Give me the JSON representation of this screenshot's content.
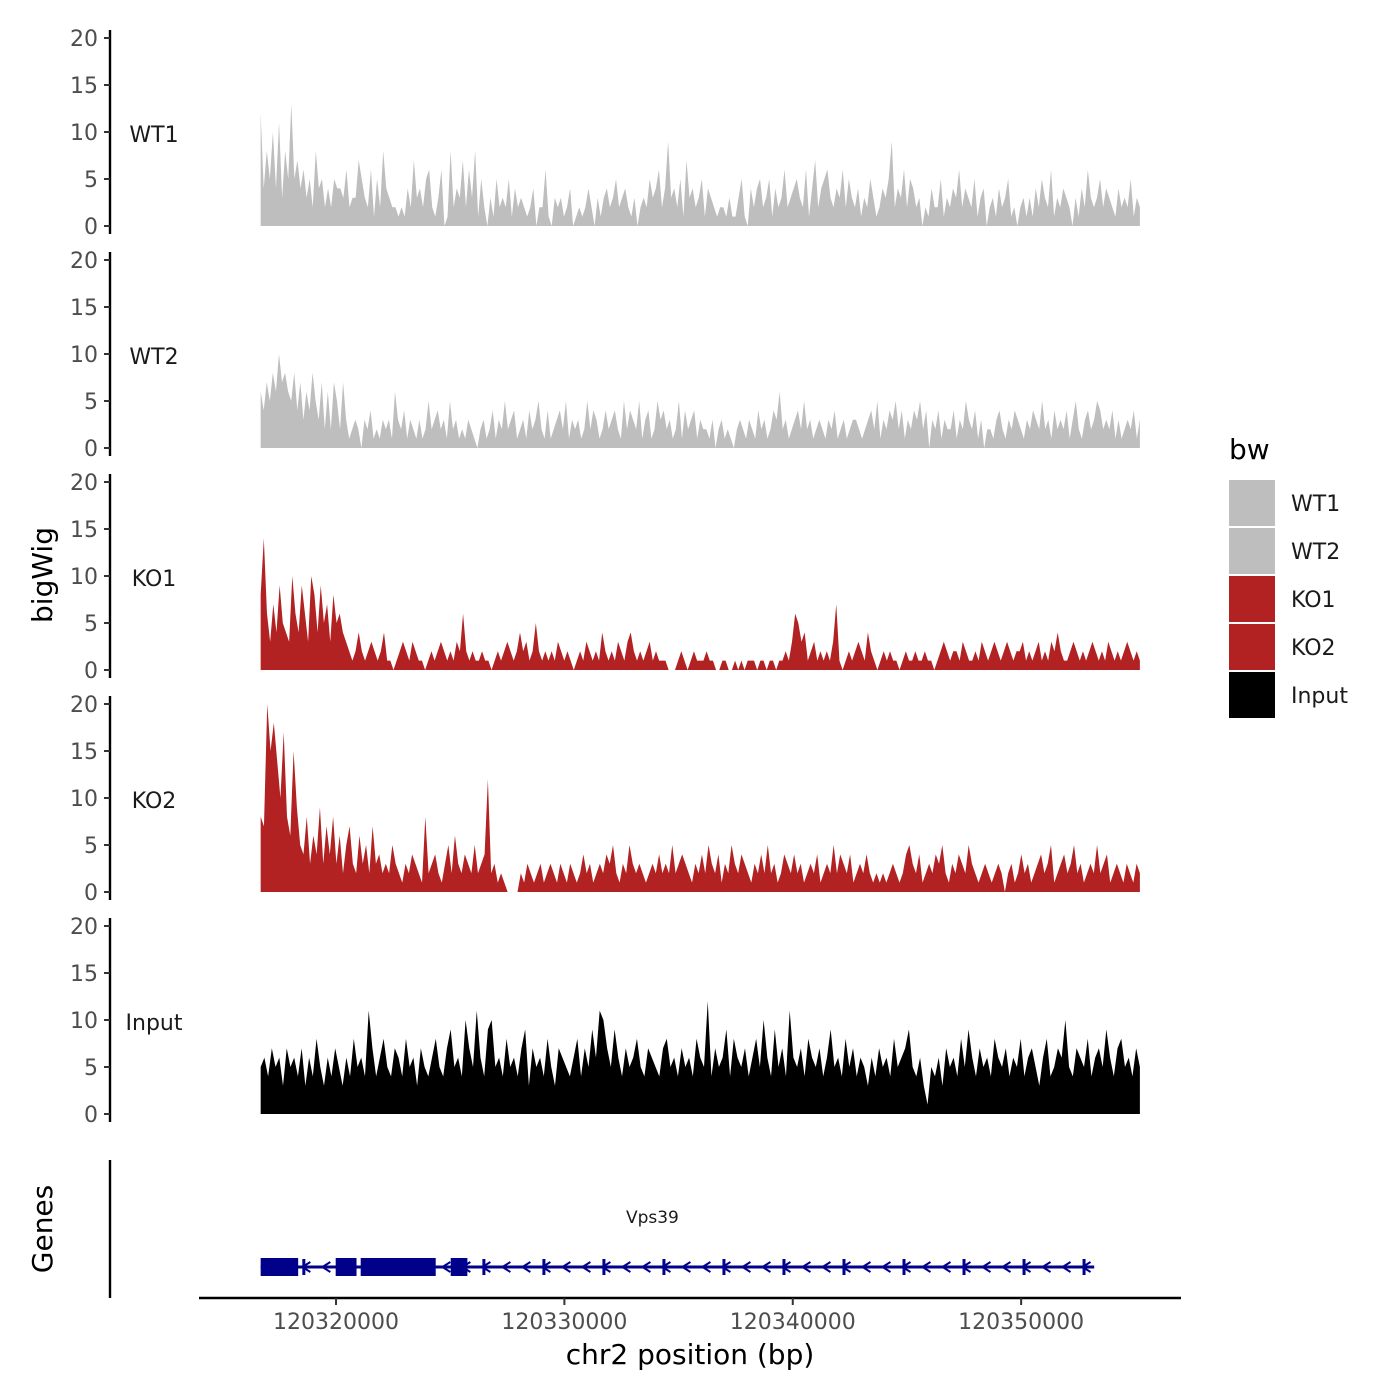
{
  "chart_data": {
    "type": "area",
    "y_axis_title": "bigWig",
    "x_axis_title": "chr2 position (bp)",
    "genes_axis_title": "Genes",
    "xlim": [
      120314000,
      120357000
    ],
    "ylim": [
      0,
      20
    ],
    "y_ticks": [
      0,
      5,
      10,
      15,
      20
    ],
    "x_ticks": [
      120320000,
      120330000,
      120340000,
      120350000
    ],
    "x_tick_labels": [
      "120320000",
      "120330000",
      "120340000",
      "120350000"
    ],
    "data_start": 120316700,
    "data_end": 120355200,
    "legend": {
      "title": "bw",
      "entries": [
        {
          "name": "WT1",
          "color": "#bebebe"
        },
        {
          "name": "WT2",
          "color": "#bebebe"
        },
        {
          "name": "KO1",
          "color": "#b22222"
        },
        {
          "name": "KO2",
          "color": "#b22222"
        },
        {
          "name": "Input",
          "color": "#000000"
        }
      ]
    },
    "series": [
      {
        "name": "WT1",
        "color": "#bebebe",
        "values": [
          12,
          4,
          8,
          5,
          10,
          4,
          11,
          3,
          8,
          5,
          13,
          5,
          7,
          4,
          6,
          3,
          5,
          2,
          8,
          4,
          5,
          2,
          4,
          2,
          5,
          4,
          4,
          3,
          6,
          2,
          3,
          3,
          7,
          5,
          3,
          2,
          6,
          1,
          5,
          2,
          8,
          4,
          3,
          2,
          2,
          1,
          2,
          1,
          4,
          2,
          7,
          3,
          4,
          2,
          5,
          6,
          2,
          1,
          3,
          6,
          0,
          1,
          8,
          2,
          4,
          3,
          7,
          2,
          6,
          3,
          8,
          1,
          5,
          2,
          0,
          3,
          1,
          5,
          2,
          3,
          2,
          5,
          1,
          4,
          2,
          3,
          2,
          1,
          2,
          4,
          0,
          2,
          2,
          6,
          1,
          0,
          3,
          2,
          3,
          1,
          2,
          4,
          0,
          1,
          2,
          1,
          2,
          4,
          2,
          0,
          3,
          1,
          3,
          4,
          2,
          3,
          5,
          2,
          3,
          4,
          2,
          1,
          3,
          0,
          2,
          3,
          2,
          5,
          3,
          4,
          6,
          2,
          4,
          9,
          3,
          4,
          2,
          5,
          1,
          7,
          3,
          4,
          2,
          3,
          5,
          1,
          4,
          3,
          2,
          1,
          2,
          2,
          1,
          3,
          1,
          1,
          3,
          5,
          1,
          0,
          4,
          2,
          4,
          5,
          2,
          3,
          5,
          1,
          4,
          2,
          3,
          6,
          2,
          3,
          4,
          5,
          3,
          2,
          6,
          1,
          4,
          7,
          2,
          4,
          5,
          6,
          3,
          2,
          4,
          3,
          6,
          2,
          5,
          3,
          2,
          4,
          1,
          3,
          2,
          5,
          3,
          1,
          2,
          4,
          3,
          5,
          9,
          2,
          4,
          3,
          6,
          2,
          5,
          4,
          2,
          3,
          0,
          2,
          1,
          4,
          2,
          2,
          5,
          1,
          3,
          2,
          4,
          3,
          6,
          2,
          4,
          3,
          2,
          5,
          1,
          3,
          4,
          0,
          2,
          3,
          1,
          4,
          2,
          3,
          5,
          1,
          2,
          0,
          2,
          3,
          1,
          3,
          1,
          4,
          2,
          5,
          3,
          2,
          6,
          1,
          3,
          2,
          4,
          3,
          2,
          0,
          3,
          1,
          4,
          2,
          6,
          3,
          2,
          3,
          5,
          2,
          4,
          3,
          2,
          1,
          4,
          2,
          3,
          2,
          5,
          1,
          3,
          2
        ]
      },
      {
        "name": "WT2",
        "color": "#bebebe",
        "values": [
          6,
          4,
          7,
          5,
          8,
          6,
          10,
          7,
          8,
          6,
          5,
          8,
          4,
          7,
          3,
          6,
          4,
          8,
          5,
          3,
          7,
          2,
          6,
          2,
          7,
          5,
          2,
          7,
          3,
          1,
          2,
          3,
          2,
          0,
          3,
          2,
          4,
          1,
          2,
          1,
          3,
          2,
          3,
          1,
          6,
          3,
          2,
          4,
          1,
          3,
          2,
          1,
          3,
          1,
          2,
          5,
          2,
          3,
          4,
          2,
          3,
          1,
          5,
          2,
          3,
          1,
          2,
          1,
          3,
          2,
          1,
          0,
          2,
          3,
          1,
          2,
          4,
          1,
          3,
          2,
          5,
          2,
          3,
          4,
          1,
          2,
          3,
          1,
          4,
          2,
          3,
          5,
          2,
          1,
          4,
          1,
          2,
          3,
          4,
          2,
          5,
          1,
          3,
          2,
          3,
          1,
          2,
          5,
          2,
          4,
          3,
          1,
          2,
          4,
          2,
          3,
          4,
          2,
          1,
          5,
          2,
          4,
          3,
          2,
          5,
          1,
          3,
          4,
          1,
          2,
          5,
          3,
          4,
          2,
          3,
          1,
          2,
          5,
          1,
          4,
          2,
          3,
          4,
          1,
          3,
          2,
          2,
          1,
          3,
          0,
          2,
          3,
          1,
          2,
          1,
          0,
          2,
          3,
          2,
          1,
          3,
          2,
          1,
          4,
          2,
          3,
          1,
          2,
          4,
          3,
          6,
          2,
          3,
          1,
          2,
          3,
          4,
          2,
          5,
          2,
          3,
          1,
          2,
          3,
          2,
          1,
          3,
          2,
          4,
          1,
          2,
          3,
          1,
          2,
          3,
          3,
          2,
          1,
          2,
          3,
          4,
          2,
          5,
          1,
          3,
          2,
          4,
          3,
          5,
          2,
          4,
          1,
          3,
          2,
          4,
          3,
          5,
          2,
          4,
          0,
          3,
          2,
          4,
          1,
          3,
          2,
          2,
          4,
          1,
          3,
          2,
          5,
          3,
          2,
          4,
          1,
          3,
          0,
          2,
          2,
          1,
          3,
          4,
          2,
          1,
          3,
          2,
          4,
          3,
          2,
          1,
          3,
          2,
          4,
          3,
          2,
          5,
          2,
          3,
          1,
          4,
          2,
          3,
          2,
          4,
          1,
          3,
          5,
          2,
          1,
          3,
          4,
          2,
          3,
          5,
          4,
          2,
          3,
          2,
          4,
          1,
          3,
          1,
          2,
          3,
          2,
          4,
          1,
          3
        ]
      },
      {
        "name": "KO1",
        "color": "#b22222",
        "values": [
          8,
          14,
          6,
          3,
          7,
          4,
          9,
          5,
          4,
          3,
          10,
          6,
          4,
          9,
          6,
          3,
          10,
          8,
          4,
          9,
          5,
          7,
          3,
          8,
          5,
          6,
          4,
          3,
          2,
          1,
          2,
          4,
          2,
          1,
          2,
          3,
          2,
          1,
          2,
          4,
          1,
          1,
          0,
          1,
          2,
          3,
          2,
          1,
          3,
          2,
          1,
          1,
          0,
          1,
          2,
          1,
          2,
          3,
          2,
          1,
          2,
          1,
          3,
          2,
          6,
          2,
          1,
          2,
          1,
          1,
          2,
          1,
          1,
          0,
          1,
          2,
          1,
          2,
          3,
          2,
          1,
          2,
          4,
          2,
          3,
          1,
          2,
          5,
          2,
          1,
          2,
          1,
          2,
          1,
          3,
          2,
          1,
          2,
          1,
          0,
          1,
          2,
          1,
          3,
          2,
          1,
          2,
          1,
          4,
          2,
          1,
          2,
          1,
          3,
          2,
          1,
          3,
          4,
          2,
          1,
          2,
          1,
          2,
          3,
          1,
          2,
          1,
          1,
          1,
          0,
          0,
          0,
          1,
          2,
          1,
          0,
          1,
          2,
          1,
          1,
          1,
          2,
          1,
          1,
          0,
          0,
          1,
          1,
          0,
          0,
          1,
          0,
          1,
          0,
          1,
          1,
          1,
          0,
          1,
          1,
          0,
          1,
          1,
          0,
          1,
          1,
          2,
          1,
          3,
          6,
          5,
          3,
          4,
          1,
          2,
          3,
          1,
          2,
          1,
          2,
          1,
          3,
          7,
          1,
          0,
          1,
          2,
          1,
          2,
          3,
          2,
          1,
          4,
          2,
          1,
          0,
          1,
          2,
          1,
          2,
          1,
          1,
          0,
          1,
          2,
          1,
          1,
          2,
          1,
          1,
          2,
          1,
          1,
          0,
          1,
          2,
          3,
          2,
          1,
          2,
          2,
          1,
          3,
          2,
          1,
          1,
          2,
          1,
          3,
          2,
          1,
          2,
          3,
          2,
          1,
          2,
          3,
          2,
          1,
          2,
          2,
          3,
          1,
          2,
          1,
          2,
          3,
          1,
          2,
          1,
          3,
          2,
          4,
          2,
          1,
          1,
          2,
          3,
          2,
          1,
          2,
          1,
          2,
          3,
          2,
          1,
          2,
          1,
          3,
          2,
          1,
          2,
          1,
          2,
          3,
          2,
          1,
          2,
          1
        ]
      },
      {
        "name": "KO2",
        "color": "#b22222",
        "values": [
          8,
          7,
          20,
          15,
          18,
          14,
          10,
          17,
          8,
          6,
          15,
          9,
          5,
          4,
          8,
          3,
          6,
          4,
          9,
          3,
          7,
          4,
          8,
          3,
          6,
          2,
          5,
          7,
          3,
          2,
          6,
          3,
          5,
          2,
          7,
          3,
          4,
          2,
          3,
          2,
          5,
          3,
          2,
          1,
          3,
          2,
          4,
          3,
          2,
          1,
          8,
          2,
          3,
          4,
          2,
          1,
          3,
          5,
          2,
          6,
          3,
          2,
          4,
          3,
          2,
          5,
          2,
          3,
          4,
          12,
          2,
          3,
          1,
          2,
          1,
          0,
          0,
          0,
          0,
          2,
          1,
          3,
          2,
          1,
          2,
          3,
          1,
          2,
          3,
          2,
          1,
          3,
          2,
          1,
          3,
          2,
          1,
          2,
          4,
          2,
          3,
          1,
          2,
          3,
          2,
          4,
          3,
          5,
          2,
          1,
          3,
          2,
          5,
          3,
          2,
          3,
          2,
          1,
          2,
          3,
          2,
          4,
          2,
          3,
          2,
          5,
          2,
          3,
          4,
          3,
          2,
          1,
          3,
          2,
          4,
          2,
          5,
          3,
          2,
          4,
          1,
          3,
          2,
          5,
          3,
          2,
          4,
          3,
          2,
          1,
          3,
          2,
          4,
          2,
          5,
          2,
          3,
          1,
          2,
          4,
          3,
          2,
          4,
          2,
          3,
          1,
          2,
          3,
          2,
          4,
          1,
          2,
          3,
          2,
          5,
          2,
          4,
          3,
          2,
          4,
          1,
          2,
          3,
          2,
          4,
          2,
          1,
          2,
          1,
          2,
          1,
          2,
          3,
          2,
          1,
          2,
          4,
          5,
          3,
          2,
          4,
          1,
          2,
          3,
          2,
          4,
          3,
          5,
          2,
          1,
          3,
          2,
          4,
          3,
          2,
          5,
          3,
          2,
          1,
          2,
          3,
          2,
          1,
          2,
          3,
          2,
          0,
          2,
          3,
          1,
          2,
          4,
          2,
          3,
          1,
          2,
          3,
          4,
          2,
          3,
          5,
          1,
          2,
          3,
          4,
          2,
          3,
          5,
          2,
          3,
          1,
          2,
          3,
          2,
          5,
          2,
          3,
          4,
          1,
          2,
          3,
          2,
          1,
          3,
          2,
          1,
          3,
          2
        ]
      },
      {
        "name": "Input",
        "color": "#000000",
        "values": [
          5,
          6,
          4,
          7,
          5,
          6,
          3,
          7,
          5,
          6,
          4,
          7,
          3,
          6,
          4,
          8,
          5,
          3,
          6,
          4,
          7,
          5,
          3,
          6,
          4,
          8,
          5,
          6,
          4,
          11,
          7,
          4,
          6,
          8,
          5,
          4,
          7,
          6,
          4,
          8,
          5,
          6,
          3,
          7,
          5,
          4,
          6,
          8,
          5,
          4,
          7,
          9,
          5,
          6,
          4,
          10,
          7,
          5,
          11,
          6,
          4,
          9,
          10,
          5,
          6,
          4,
          8,
          5,
          6,
          4,
          7,
          9,
          3,
          7,
          5,
          6,
          4,
          8,
          5,
          3,
          7,
          6,
          5,
          4,
          6,
          8,
          4,
          7,
          5,
          9,
          6,
          11,
          10,
          7,
          5,
          9,
          6,
          4,
          7,
          5,
          6,
          8,
          5,
          4,
          7,
          6,
          5,
          4,
          7,
          8,
          5,
          6,
          4,
          7,
          5,
          6,
          4,
          8,
          6,
          5,
          12,
          4,
          7,
          5,
          6,
          9,
          4,
          8,
          6,
          5,
          7,
          4,
          6,
          8,
          5,
          10,
          6,
          4,
          9,
          5,
          7,
          4,
          11,
          6,
          5,
          7,
          4,
          8,
          6,
          5,
          7,
          4,
          6,
          9,
          5,
          6,
          4,
          8,
          5,
          7,
          4,
          6,
          5,
          3,
          6,
          4,
          7,
          5,
          6,
          4,
          8,
          5,
          6,
          7,
          9,
          5,
          4,
          6,
          3,
          1,
          5,
          4,
          6,
          3,
          7,
          5,
          6,
          4,
          8,
          5,
          9,
          6,
          4,
          7,
          5,
          6,
          4,
          8,
          6,
          5,
          7,
          4,
          6,
          5,
          8,
          4,
          6,
          7,
          5,
          3,
          6,
          8,
          4,
          5,
          7,
          6,
          10,
          5,
          4,
          7,
          6,
          5,
          8,
          4,
          6,
          7,
          5,
          9,
          6,
          4,
          7,
          8,
          5,
          6,
          4,
          7,
          5
        ]
      }
    ],
    "gene": {
      "name": "Vps39",
      "color": "#00008b",
      "start": 120316700,
      "end": 120353200
    }
  }
}
